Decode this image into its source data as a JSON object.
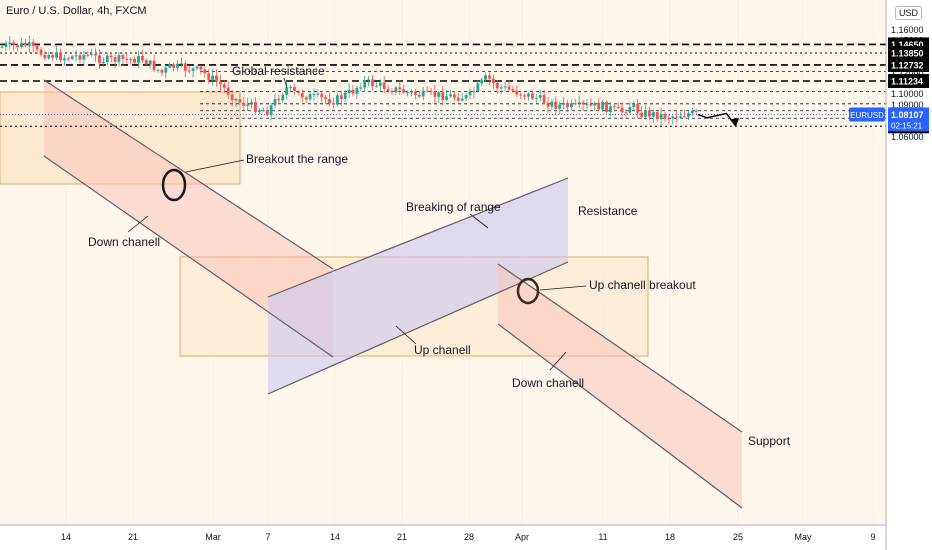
{
  "header": {
    "symbol_title": "Euro / U.S. Dollar, 4h, FXCM",
    "currency_label": "USD"
  },
  "colors": {
    "bull": "#26a69a",
    "bear": "#ef5350",
    "channel_line": "#5d606b",
    "level_line": "#000000",
    "last_price_badge": "#2962ff"
  },
  "chart_data": {
    "type": "candlestick",
    "symbol": "EURUSD",
    "timeframe": "4h",
    "ylim": [
      1.055,
      1.165
    ],
    "y_ticks": [
      "1.16000",
      "1.15000",
      "1.14000",
      "1.13000",
      "1.12000",
      "1.11000",
      "1.10000",
      "1.09000",
      "1.08000",
      "1.07000",
      "1.06000"
    ],
    "x_ticks": [
      "14",
      "21",
      "Mar",
      "7",
      "14",
      "21",
      "28",
      "Apr",
      "11",
      "18",
      "25",
      "May",
      "9"
    ],
    "price_path": [
      {
        "date": "2022-02-07",
        "value": 1.144
      },
      {
        "date": "2022-02-10",
        "value": 1.146
      },
      {
        "date": "2022-02-11",
        "value": 1.139
      },
      {
        "date": "2022-02-14",
        "value": 1.134
      },
      {
        "date": "2022-02-16",
        "value": 1.137
      },
      {
        "date": "2022-02-18",
        "value": 1.132
      },
      {
        "date": "2022-02-22",
        "value": 1.133
      },
      {
        "date": "2022-02-24",
        "value": 1.12
      },
      {
        "date": "2022-02-25",
        "value": 1.126
      },
      {
        "date": "2022-02-28",
        "value": 1.122
      },
      {
        "date": "2022-03-02",
        "value": 1.11
      },
      {
        "date": "2022-03-04",
        "value": 1.093
      },
      {
        "date": "2022-03-07",
        "value": 1.084
      },
      {
        "date": "2022-03-09",
        "value": 1.106
      },
      {
        "date": "2022-03-10",
        "value": 1.1
      },
      {
        "date": "2022-03-14",
        "value": 1.094
      },
      {
        "date": "2022-03-16",
        "value": 1.103
      },
      {
        "date": "2022-03-17",
        "value": 1.112
      },
      {
        "date": "2022-03-21",
        "value": 1.103
      },
      {
        "date": "2022-03-23",
        "value": 1.099
      },
      {
        "date": "2022-03-25",
        "value": 1.099
      },
      {
        "date": "2022-03-28",
        "value": 1.097
      },
      {
        "date": "2022-03-30",
        "value": 1.116
      },
      {
        "date": "2022-03-31",
        "value": 1.107
      },
      {
        "date": "2022-04-01",
        "value": 1.105
      },
      {
        "date": "2022-04-04",
        "value": 1.097
      },
      {
        "date": "2022-04-06",
        "value": 1.09
      },
      {
        "date": "2022-04-08",
        "value": 1.088
      },
      {
        "date": "2022-04-11",
        "value": 1.089
      },
      {
        "date": "2022-04-13",
        "value": 1.083
      },
      {
        "date": "2022-04-14",
        "value": 1.09
      },
      {
        "date": "2022-04-15",
        "value": 1.083
      },
      {
        "date": "2022-04-18",
        "value": 1.079
      },
      {
        "date": "2022-04-20",
        "value": 1.082
      },
      {
        "date": "2022-04-21",
        "value": 1.081
      }
    ],
    "projection": [
      {
        "date": "2022-04-21",
        "value": 1.081
      },
      {
        "date": "2022-04-22",
        "value": 1.078
      },
      {
        "date": "2022-04-24",
        "value": 1.082
      },
      {
        "date": "2022-04-25",
        "value": 1.07
      }
    ],
    "horizontal_levels": [
      {
        "value": 1.1465,
        "label": "1.14650",
        "style": "bold-dashed"
      },
      {
        "value": 1.1385,
        "label": "1.13850",
        "style": "dotted"
      },
      {
        "value": 1.12732,
        "label": "1.12732",
        "style": "bold-dashed"
      },
      {
        "value": 1.11234,
        "label": "1.11234",
        "style": "bold-dashed"
      },
      {
        "value": 1.07,
        "label": "1.07000",
        "style": "dotted"
      }
    ],
    "minor_levels": [
      1.1212,
      1.1025,
      1.091,
      1.0845,
      1.0775
    ],
    "last_price": {
      "value": 1.08107,
      "symbol": "EURUSD",
      "label": "1.08107",
      "countdown": "02:15:21"
    },
    "annotations": [
      "Global resistance",
      "Breakout the range",
      "Down chanell",
      "Breaking of range",
      "Resistance",
      "Up chanell breakout",
      "Up chanell",
      "Down chanell",
      "Support"
    ]
  }
}
